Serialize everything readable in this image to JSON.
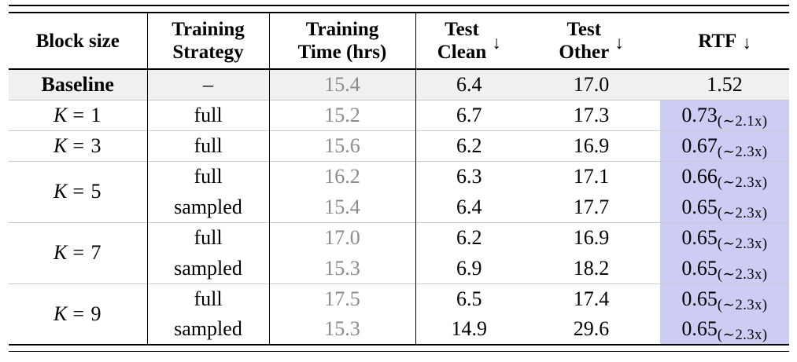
{
  "header": {
    "block": "Block size",
    "strategy_l1": "Training",
    "strategy_l2": "Strategy",
    "time_l1": "Training",
    "time_l2": "Time (hrs)",
    "clean_l1": "Test",
    "clean_l2": "Clean",
    "other_l1": "Test",
    "other_l2": "Other",
    "rtf": "RTF",
    "arrow": "↓"
  },
  "rows": {
    "baseline": {
      "block": "Baseline",
      "strategy": "–",
      "time": "15.4",
      "clean": "6.4",
      "other": "17.0",
      "rtf": "1.52"
    },
    "k1": {
      "var": "K",
      "eq": "= 1",
      "strategy": "full",
      "time": "15.2",
      "clean": "6.7",
      "other": "17.3",
      "rtf": "0.73",
      "rtf_sub": "(∼2.1x)"
    },
    "k3": {
      "var": "K",
      "eq": "= 3",
      "strategy": "full",
      "time": "15.6",
      "clean": "6.2",
      "other": "16.9",
      "rtf": "0.67",
      "rtf_sub": "(∼2.3x)"
    },
    "k5": {
      "var": "K",
      "eq": "= 5",
      "r1": {
        "strategy": "full",
        "time": "16.2",
        "clean": "6.3",
        "other": "17.1",
        "rtf": "0.66",
        "rtf_sub": "(∼2.3x)"
      },
      "r2": {
        "strategy": "sampled",
        "time": "15.4",
        "clean": "6.4",
        "other": "17.7",
        "rtf": "0.65",
        "rtf_sub": "(∼2.3x)"
      }
    },
    "k7": {
      "var": "K",
      "eq": "= 7",
      "r1": {
        "strategy": "full",
        "time": "17.0",
        "clean": "6.2",
        "other": "16.9",
        "rtf": "0.65",
        "rtf_sub": "(∼2.3x)"
      },
      "r2": {
        "strategy": "sampled",
        "time": "15.3",
        "clean": "6.9",
        "other": "18.2",
        "rtf": "0.65",
        "rtf_sub": "(∼2.3x)"
      }
    },
    "k9": {
      "var": "K",
      "eq": "= 9",
      "r1": {
        "strategy": "full",
        "time": "17.5",
        "clean": "6.5",
        "other": "17.4",
        "rtf": "0.65",
        "rtf_sub": "(∼2.3x)"
      },
      "r2": {
        "strategy": "sampled",
        "time": "15.3",
        "clean": "14.9",
        "other": "29.6",
        "rtf": "0.65",
        "rtf_sub": "(∼2.3x)"
      }
    }
  },
  "colors": {
    "rtf_highlight": "#cdccf4",
    "baseline_row_bg": "#f0f0f0",
    "time_text": "#8b8b8b",
    "separator": "#c9c9c9"
  }
}
